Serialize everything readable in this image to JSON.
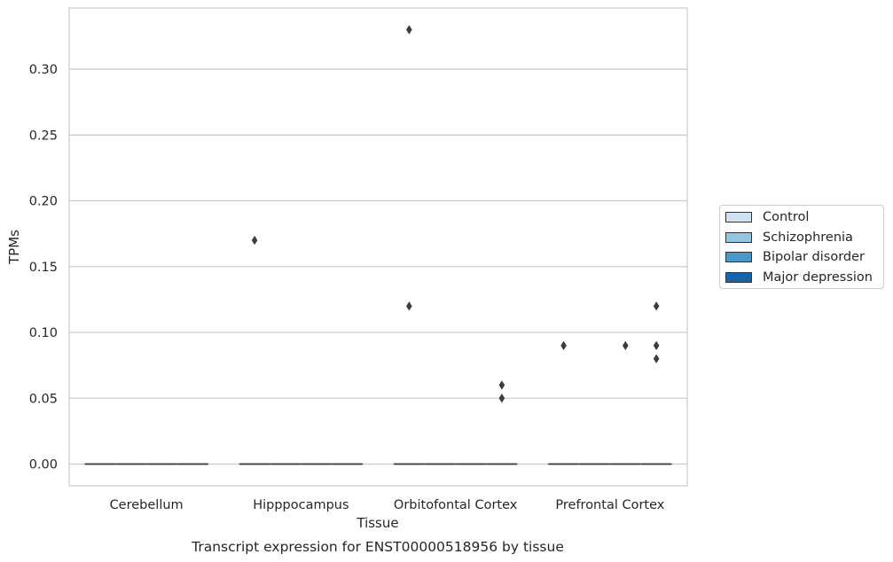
{
  "chart_data": {
    "type": "box",
    "title": "Transcript expression for ENST00000518956 by tissue",
    "xlabel": "Tissue",
    "ylabel": "TPMs",
    "categories": [
      "Cerebellum",
      "Hipppocampus",
      "Orbitofontal Cortex",
      "Prefrontal Cortex"
    ],
    "ylim": [
      -0.0165,
      0.3465
    ],
    "yticks": [
      0.0,
      0.05,
      0.1,
      0.15,
      0.2,
      0.25,
      0.3
    ],
    "ytick_labels": [
      "0.00",
      "0.05",
      "0.10",
      "0.15",
      "0.20",
      "0.25",
      "0.30"
    ],
    "grid": true,
    "legend_position": "right",
    "series": [
      {
        "name": "Control",
        "color": "#d0e1f2",
        "boxes": [
          {
            "category": "Cerebellum",
            "median": 0,
            "q1": 0,
            "q3": 0,
            "outliers": []
          },
          {
            "category": "Hipppocampus",
            "median": 0,
            "q1": 0,
            "q3": 0,
            "outliers": [
              0.17
            ]
          },
          {
            "category": "Orbitofontal Cortex",
            "median": 0,
            "q1": 0,
            "q3": 0,
            "outliers": [
              0.33,
              0.12
            ]
          },
          {
            "category": "Prefrontal Cortex",
            "median": 0,
            "q1": 0,
            "q3": 0,
            "outliers": [
              0.09
            ]
          }
        ]
      },
      {
        "name": "Schizophrenia",
        "color": "#94c4df",
        "boxes": [
          {
            "category": "Cerebellum",
            "median": 0,
            "q1": 0,
            "q3": 0,
            "outliers": []
          },
          {
            "category": "Hipppocampus",
            "median": 0,
            "q1": 0,
            "q3": 0,
            "outliers": []
          },
          {
            "category": "Orbitofontal Cortex",
            "median": 0,
            "q1": 0,
            "q3": 0,
            "outliers": []
          },
          {
            "category": "Prefrontal Cortex",
            "median": 0,
            "q1": 0,
            "q3": 0,
            "outliers": []
          }
        ]
      },
      {
        "name": "Bipolar disorder",
        "color": "#4a98c9",
        "boxes": [
          {
            "category": "Cerebellum",
            "median": 0,
            "q1": 0,
            "q3": 0,
            "outliers": []
          },
          {
            "category": "Hipppocampus",
            "median": 0,
            "q1": 0,
            "q3": 0,
            "outliers": []
          },
          {
            "category": "Orbitofontal Cortex",
            "median": 0,
            "q1": 0,
            "q3": 0,
            "outliers": []
          },
          {
            "category": "Prefrontal Cortex",
            "median": 0,
            "q1": 0,
            "q3": 0,
            "outliers": [
              0.09
            ]
          }
        ]
      },
      {
        "name": "Major depression",
        "color": "#1764ab",
        "boxes": [
          {
            "category": "Cerebellum",
            "median": 0,
            "q1": 0,
            "q3": 0,
            "outliers": []
          },
          {
            "category": "Hipppocampus",
            "median": 0,
            "q1": 0,
            "q3": 0,
            "outliers": []
          },
          {
            "category": "Orbitofontal Cortex",
            "median": 0,
            "q1": 0,
            "q3": 0,
            "outliers": [
              0.06,
              0.05
            ]
          },
          {
            "category": "Prefrontal Cortex",
            "median": 0,
            "q1": 0,
            "q3": 0,
            "outliers": [
              0.12,
              0.09,
              0.08
            ]
          }
        ]
      }
    ],
    "colors": {
      "grid": "#cccccc",
      "axis_frame": "#cccccc",
      "line": "#3d3d3d",
      "text": "#262626"
    }
  }
}
